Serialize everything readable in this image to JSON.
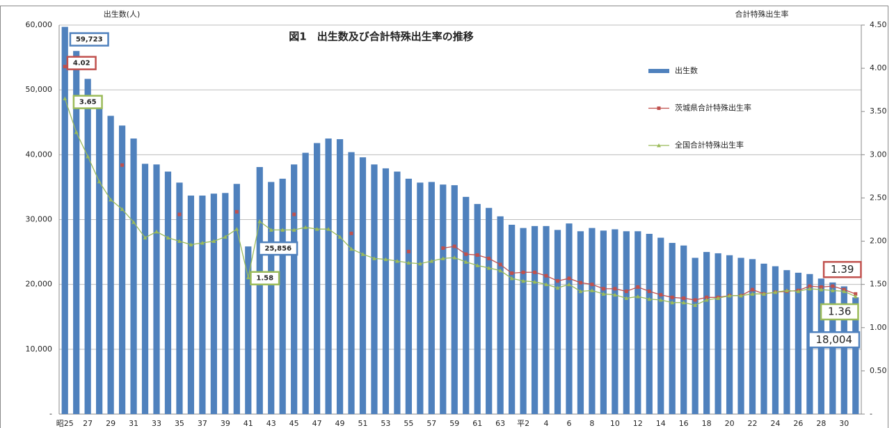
{
  "chart_data": {
    "type": "bar",
    "title": "図1　出生数及び合計特殊出生率の推移",
    "y_label": "出生数(人)",
    "y2_label": "合計特殊出生率",
    "categories": [
      "昭25",
      null,
      "27",
      null,
      "29",
      null,
      "31",
      null,
      "33",
      null,
      "35",
      null,
      "37",
      null,
      "39",
      null,
      "41",
      null,
      "43",
      null,
      "45",
      null,
      "47",
      null,
      "49",
      null,
      "51",
      null,
      "53",
      null,
      "55",
      null,
      "57",
      null,
      "59",
      null,
      "61",
      null,
      "63",
      null,
      "平2",
      null,
      "4",
      null,
      "6",
      null,
      "8",
      null,
      "10",
      null,
      "12",
      null,
      "14",
      null,
      "16",
      null,
      "18",
      null,
      "20",
      null,
      "22",
      null,
      "24",
      null,
      "26",
      null,
      "28",
      null,
      "30",
      null
    ],
    "series": [
      {
        "name": "出生数",
        "type": "bar",
        "color": "#4f81bd",
        "values": [
          59723,
          56000,
          51700,
          48000,
          46000,
          44500,
          42500,
          38600,
          38500,
          37400,
          35700,
          33700,
          33700,
          34000,
          34100,
          35500,
          25856,
          38100,
          35800,
          36300,
          38500,
          40300,
          41800,
          42500,
          42400,
          40400,
          39600,
          38500,
          37900,
          37400,
          36300,
          35700,
          35800,
          35400,
          35300,
          33500,
          32400,
          31800,
          30500,
          29200,
          28700,
          29000,
          29000,
          28400,
          29400,
          28200,
          28700,
          28300,
          28500,
          28200,
          28200,
          27800,
          27200,
          26400,
          26000,
          24100,
          25000,
          24800,
          24500,
          24100,
          23900,
          23200,
          22800,
          22200,
          21800,
          21600,
          20900,
          20300,
          19700,
          18004
        ],
        "value_labels": [
          "59,723",
          null,
          null,
          null,
          null,
          null,
          null,
          null,
          null,
          null,
          null,
          null,
          null,
          null,
          null,
          null,
          "25,856",
          null,
          null,
          null,
          null,
          null,
          null,
          null,
          null,
          null,
          null,
          null,
          null,
          null,
          null,
          null,
          null,
          null,
          null,
          null,
          null,
          null,
          null,
          null,
          null,
          null,
          null,
          null,
          null,
          null,
          null,
          null,
          null,
          null,
          null,
          null,
          null,
          null,
          null,
          null,
          null,
          null,
          null,
          null,
          null,
          null,
          null,
          null,
          null,
          null,
          null,
          null,
          null,
          "18,004"
        ]
      },
      {
        "name": "茨城県合計特殊出生率",
        "type": "line",
        "axis": "y2",
        "color": "#c0504d",
        "values": [
          4.02,
          null,
          null,
          null,
          null,
          2.88,
          null,
          null,
          null,
          null,
          2.31,
          null,
          null,
          null,
          null,
          2.34,
          null,
          null,
          null,
          null,
          2.31,
          null,
          null,
          null,
          null,
          2.09,
          null,
          null,
          null,
          null,
          1.88,
          null,
          null,
          1.92,
          1.94,
          1.85,
          1.84,
          1.8,
          1.73,
          1.63,
          1.64,
          1.64,
          1.6,
          1.54,
          1.57,
          1.52,
          1.5,
          1.45,
          1.45,
          1.42,
          1.47,
          1.42,
          1.38,
          1.35,
          1.34,
          1.32,
          1.35,
          1.35,
          1.37,
          1.37,
          1.44,
          1.39,
          1.41,
          1.42,
          1.43,
          1.48,
          1.47,
          1.48,
          1.44,
          1.39
        ],
        "value_labels": [
          "4.02",
          null,
          null,
          null,
          null,
          null,
          null,
          null,
          null,
          null,
          null,
          null,
          null,
          null,
          null,
          null,
          null,
          null,
          null,
          null,
          null,
          null,
          null,
          null,
          null,
          null,
          null,
          null,
          null,
          null,
          null,
          null,
          null,
          null,
          null,
          null,
          null,
          null,
          null,
          null,
          null,
          null,
          null,
          null,
          null,
          null,
          null,
          null,
          null,
          null,
          null,
          null,
          null,
          null,
          null,
          null,
          null,
          null,
          null,
          null,
          null,
          null,
          null,
          null,
          null,
          null,
          null,
          null,
          null,
          "1.39"
        ]
      },
      {
        "name": "全国合計特殊出生率",
        "type": "line",
        "axis": "y2",
        "color": "#9bbb59",
        "values": [
          3.65,
          3.26,
          2.98,
          2.69,
          2.48,
          2.37,
          2.22,
          2.04,
          2.11,
          2.04,
          2.0,
          1.96,
          1.98,
          2.0,
          2.05,
          2.14,
          1.58,
          2.23,
          2.13,
          2.13,
          2.13,
          2.16,
          2.14,
          2.14,
          2.05,
          1.91,
          1.85,
          1.8,
          1.79,
          1.77,
          1.75,
          1.74,
          1.77,
          1.8,
          1.81,
          1.76,
          1.72,
          1.69,
          1.66,
          1.57,
          1.54,
          1.53,
          1.5,
          1.46,
          1.5,
          1.42,
          1.43,
          1.39,
          1.38,
          1.34,
          1.36,
          1.33,
          1.32,
          1.29,
          1.29,
          1.26,
          1.32,
          1.34,
          1.37,
          1.37,
          1.39,
          1.39,
          1.41,
          1.43,
          1.42,
          1.45,
          1.44,
          1.43,
          1.42,
          1.36
        ],
        "value_labels": [
          "3.65",
          null,
          null,
          null,
          null,
          null,
          null,
          null,
          null,
          null,
          null,
          null,
          null,
          null,
          null,
          null,
          "1.58",
          null,
          null,
          null,
          null,
          null,
          null,
          null,
          null,
          null,
          null,
          null,
          null,
          null,
          null,
          null,
          null,
          null,
          null,
          null,
          null,
          null,
          null,
          null,
          null,
          null,
          null,
          null,
          null,
          null,
          null,
          null,
          null,
          null,
          null,
          null,
          null,
          null,
          null,
          null,
          null,
          null,
          null,
          null,
          null,
          null,
          null,
          null,
          null,
          null,
          null,
          null,
          null,
          "1.36"
        ]
      }
    ],
    "ylim": [
      0,
      60000
    ],
    "yticks": [
      {
        "value": 0,
        "label": "-"
      },
      {
        "value": 10000,
        "label": "10,000"
      },
      {
        "value": 20000,
        "label": "20,000"
      },
      {
        "value": 30000,
        "label": "30,000"
      },
      {
        "value": 40000,
        "label": "40,000"
      },
      {
        "value": 50000,
        "label": "50,000"
      },
      {
        "value": 60000,
        "label": "60,000"
      }
    ],
    "y2lim": [
      0,
      4.5
    ],
    "y2ticks": [
      {
        "value": 0,
        "label": "-"
      },
      {
        "value": 0.5,
        "label": "0.50"
      },
      {
        "value": 1,
        "label": "1.00"
      },
      {
        "value": 1.5,
        "label": "1.50"
      },
      {
        "value": 2,
        "label": "2.00"
      },
      {
        "value": 2.5,
        "label": "2.50"
      },
      {
        "value": 3,
        "label": "3.00"
      },
      {
        "value": 3.5,
        "label": "3.50"
      },
      {
        "value": 4,
        "label": "4.00"
      },
      {
        "value": 4.5,
        "label": "4.50"
      }
    ],
    "grid": true,
    "legend": "right"
  }
}
